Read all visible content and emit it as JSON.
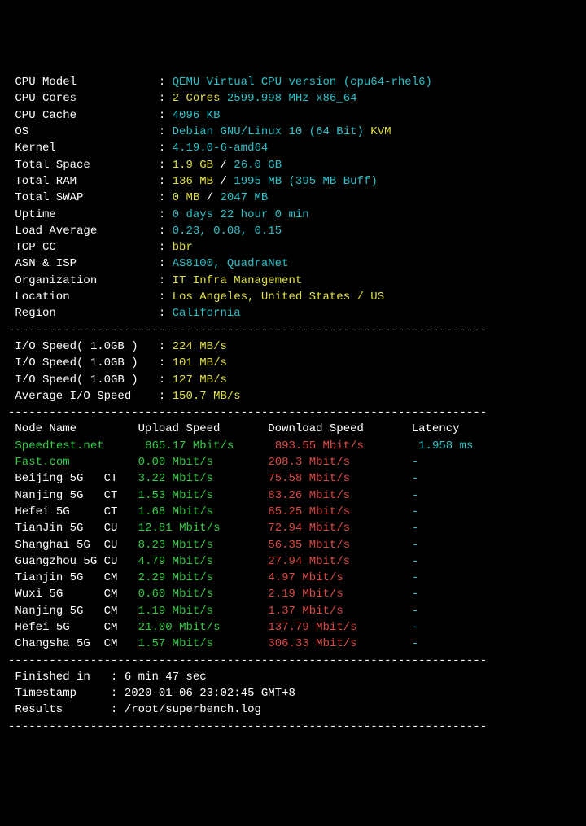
{
  "colors": {
    "background": "#000000",
    "white": "#ffffff",
    "cyan": "#2ec0c9",
    "green": "#33cc44",
    "yellow": "#e0e044",
    "red": "#d94a45"
  },
  "divider": "----------------------------------------------------------------------",
  "sys": {
    "cpu_model_label": "CPU Model",
    "cpu_model_value": "QEMU Virtual CPU version (cpu64-rhel6)",
    "cpu_cores_label": "CPU Cores",
    "cpu_cores_count": "2 Cores",
    "cpu_cores_freq": "2599.998 MHz x86_64",
    "cpu_cache_label": "CPU Cache",
    "cpu_cache_value": "4096 KB",
    "os_label": "OS",
    "os_value": "Debian GNU/Linux 10 (64 Bit)",
    "os_virt": "KVM",
    "kernel_label": "Kernel",
    "kernel_value": "4.19.0-6-amd64",
    "space_label": "Total Space",
    "space_used": "1.9 GB",
    "space_sep": " / ",
    "space_total": "26.0 GB",
    "ram_label": "Total RAM",
    "ram_used": "136 MB",
    "ram_sep": " / ",
    "ram_total": "1995 MB",
    "ram_buff": "(395 MB Buff)",
    "swap_label": "Total SWAP",
    "swap_used": "0 MB",
    "swap_sep": " / ",
    "swap_total": "2047 MB",
    "uptime_label": "Uptime",
    "uptime_value": "0 days 22 hour 0 min",
    "load_label": "Load Average",
    "load_value": "0.23, 0.08, 0.15",
    "tcp_label": "TCP CC",
    "tcp_value": "bbr",
    "asn_label": "ASN & ISP",
    "asn_value": "AS8100, QuadraNet",
    "org_label": "Organization",
    "org_value": "IT Infra Management",
    "loc_label": "Location",
    "loc_value": "Los Angeles, United States / US",
    "region_label": "Region",
    "region_value": "California"
  },
  "io": {
    "label1": "I/O Speed( 1.0GB )",
    "val1": "224 MB/s",
    "label2": "I/O Speed( 1.0GB )",
    "val2": "101 MB/s",
    "label3": "I/O Speed( 1.0GB )",
    "val3": "127 MB/s",
    "avg_label": "Average I/O Speed",
    "avg_value": "150.7 MB/s"
  },
  "speed_header": {
    "node": "Node Name",
    "upload": "Upload Speed",
    "download": "Download Speed",
    "latency": "Latency"
  },
  "speed": [
    {
      "node": "Speedtest.net",
      "tag": "",
      "up": "865.17 Mbit/s",
      "down": "893.55 Mbit/s",
      "lat": "1.958 ms",
      "node_color": "green"
    },
    {
      "node": "Fast.com",
      "tag": "",
      "up": "0.00 Mbit/s",
      "down": "208.3 Mbit/s",
      "lat": "-",
      "node_color": "green"
    },
    {
      "node": "Beijing 5G",
      "tag": "CT",
      "up": "3.22 Mbit/s",
      "down": "75.58 Mbit/s",
      "lat": "-",
      "node_color": "white"
    },
    {
      "node": "Nanjing 5G",
      "tag": "CT",
      "up": "1.53 Mbit/s",
      "down": "83.26 Mbit/s",
      "lat": "-",
      "node_color": "white"
    },
    {
      "node": "Hefei 5G",
      "tag": "CT",
      "up": "1.68 Mbit/s",
      "down": "85.25 Mbit/s",
      "lat": "-",
      "node_color": "white"
    },
    {
      "node": "TianJin 5G",
      "tag": "CU",
      "up": "12.81 Mbit/s",
      "down": "72.94 Mbit/s",
      "lat": "-",
      "node_color": "white"
    },
    {
      "node": "Shanghai 5G",
      "tag": "CU",
      "up": "8.23 Mbit/s",
      "down": "56.35 Mbit/s",
      "lat": "-",
      "node_color": "white"
    },
    {
      "node": "Guangzhou 5G",
      "tag": "CU",
      "up": "4.79 Mbit/s",
      "down": "27.94 Mbit/s",
      "lat": "-",
      "node_color": "white"
    },
    {
      "node": "Tianjin 5G",
      "tag": "CM",
      "up": "2.29 Mbit/s",
      "down": "4.97 Mbit/s",
      "lat": "-",
      "node_color": "white"
    },
    {
      "node": "Wuxi 5G",
      "tag": "CM",
      "up": "0.60 Mbit/s",
      "down": "2.19 Mbit/s",
      "lat": "-",
      "node_color": "white"
    },
    {
      "node": "Nanjing 5G",
      "tag": "CM",
      "up": "1.19 Mbit/s",
      "down": "1.37 Mbit/s",
      "lat": "-",
      "node_color": "white"
    },
    {
      "node": "Hefei 5G",
      "tag": "CM",
      "up": "21.00 Mbit/s",
      "down": "137.79 Mbit/s",
      "lat": "-",
      "node_color": "white"
    },
    {
      "node": "Changsha 5G",
      "tag": "CM",
      "up": "1.57 Mbit/s",
      "down": "306.33 Mbit/s",
      "lat": "-",
      "node_color": "white"
    }
  ],
  "footer": {
    "finished_label": "Finished in",
    "finished_value": "6 min 47 sec",
    "timestamp_label": "Timestamp",
    "timestamp_value": "2020-01-06 23:02:45 GMT+8",
    "results_label": "Results",
    "results_value": "/root/superbench.log"
  },
  "layout": {
    "label_width": 22,
    "node_col": 12,
    "tag_col": 3,
    "up_col": 19,
    "down_col": 21,
    "lat_col": 10
  }
}
